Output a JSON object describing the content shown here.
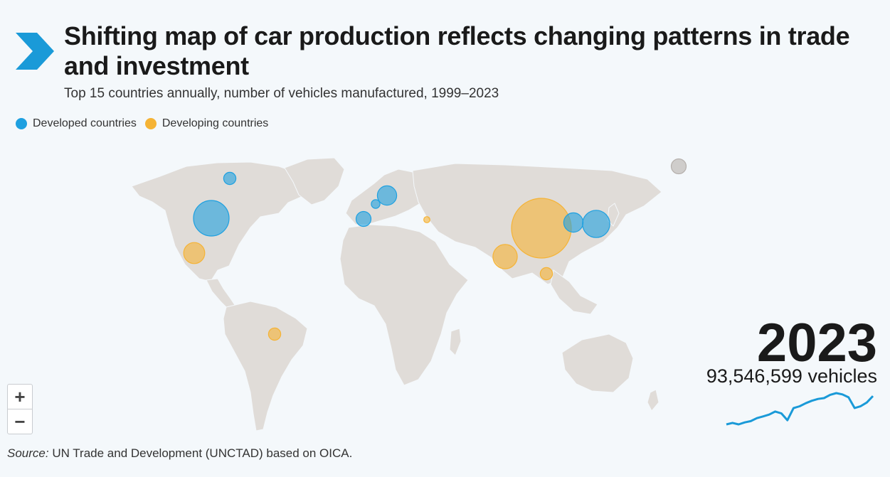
{
  "header": {
    "title": "Shifting map of car production reflects changing patterns in trade and investment",
    "subtitle": "Top 15 countries annually, number of vehicles manufactured, 1999–2023"
  },
  "legend": [
    {
      "label": "Developed countries",
      "color": "#1ea0e0"
    },
    {
      "label": "Developing countries",
      "color": "#f5b335"
    }
  ],
  "colors": {
    "developed": "#1ea0e0",
    "developing": "#f5b335",
    "other": "#b5b0ac",
    "land": "#e0dcd8",
    "sparkline": "#1a9ad8"
  },
  "zoom": {
    "in_label": "+",
    "out_label": "−"
  },
  "summary": {
    "year": "2023",
    "vehicles": "93,546,599 vehicles"
  },
  "source": {
    "prefix": "Source:",
    "text": " UN Trade and Development (UNCTAD) based on OICA."
  },
  "icons": {
    "brand": "chevron-right-icon"
  },
  "chart_data": {
    "type": "bubble-map",
    "bubble_groups": [
      "developed",
      "developing",
      "other"
    ],
    "bubbles": [
      {
        "group": "developed",
        "size": 1.7
      },
      {
        "group": "developed",
        "size": 0.2
      },
      {
        "group": "developing",
        "size": 0.6
      },
      {
        "group": "developing",
        "size": 0.2
      },
      {
        "group": "developed",
        "size": 0.5
      },
      {
        "group": "developed",
        "size": 0.1
      },
      {
        "group": "developed",
        "size": 0.3
      },
      {
        "group": "developing",
        "size": 0.05
      },
      {
        "group": "developing",
        "size": 4.8
      },
      {
        "group": "developing",
        "size": 0.8
      },
      {
        "group": "developing",
        "size": 0.2
      },
      {
        "group": "developed",
        "size": 0.5
      },
      {
        "group": "developed",
        "size": 1.0
      },
      {
        "group": "other",
        "size": 0.3
      }
    ],
    "sparkline": {
      "x": [
        1999,
        2000,
        2001,
        2002,
        2003,
        2004,
        2005,
        2006,
        2007,
        2008,
        2009,
        2010,
        2011,
        2012,
        2013,
        2014,
        2015,
        2016,
        2017,
        2018,
        2019,
        2020,
        2021,
        2022,
        2023
      ],
      "y": [
        56.3,
        58.3,
        56.3,
        58.9,
        60.6,
        64.5,
        66.7,
        69.2,
        73.2,
        70.7,
        61.8,
        77.6,
        80.1,
        84.1,
        87.3,
        89.7,
        90.8,
        95.1,
        97.3,
        95.6,
        91.8,
        77.7,
        80.2,
        85.0,
        93.5
      ]
    }
  }
}
